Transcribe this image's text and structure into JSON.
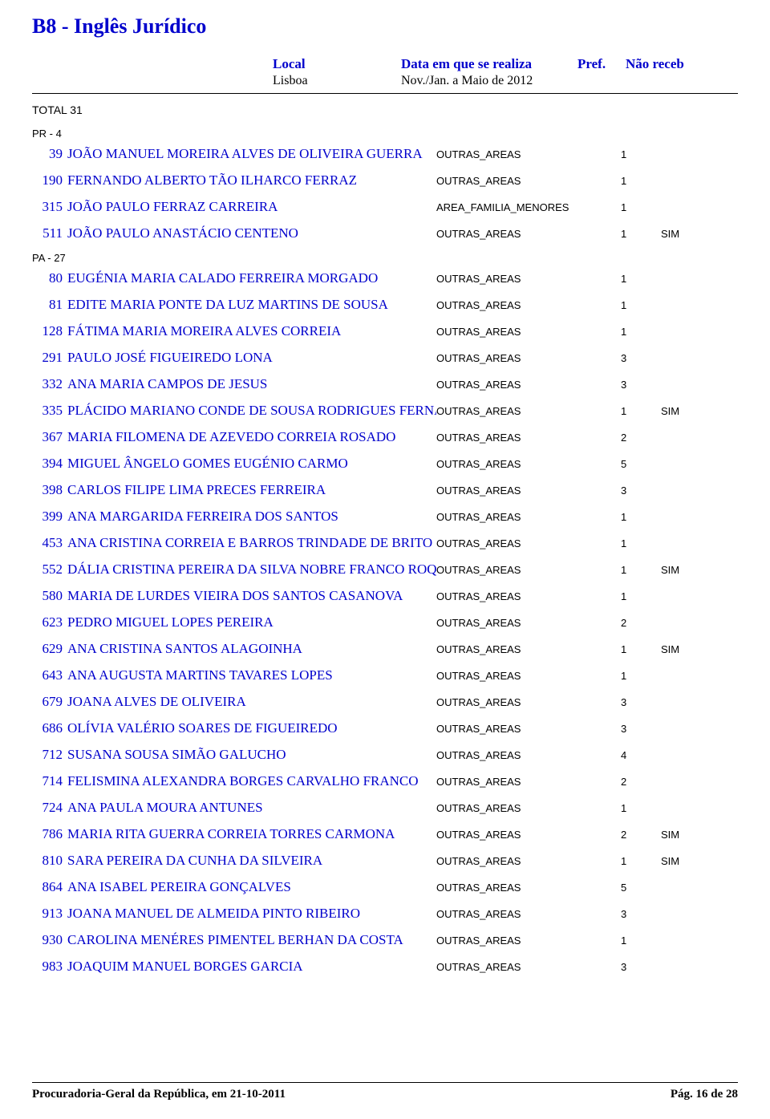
{
  "title": "B8 - Inglês Jurídico",
  "headers": {
    "local": "Local",
    "data": "Data em que se realiza",
    "pref": "Pref.",
    "nao": "Não receb"
  },
  "sub": {
    "local": "Lisboa",
    "data": "Nov./Jan. a Maio de 2012"
  },
  "total": "TOTAL 31",
  "groups": [
    {
      "label": "PR - 4",
      "rows": [
        {
          "num": "39",
          "name": "JOÃO MANUEL MOREIRA ALVES DE OLIVEIRA GUERRA",
          "area": "OUTRAS_AREAS",
          "pref": "1",
          "sim": ""
        },
        {
          "num": "190",
          "name": "FERNANDO ALBERTO TÃO ILHARCO FERRAZ",
          "area": "OUTRAS_AREAS",
          "pref": "1",
          "sim": ""
        },
        {
          "num": "315",
          "name": "JOÃO PAULO FERRAZ CARREIRA",
          "area": "AREA_FAMILIA_MENORES",
          "pref": "1",
          "sim": ""
        },
        {
          "num": "511",
          "name": "JOÃO PAULO ANASTÁCIO CENTENO",
          "area": "OUTRAS_AREAS",
          "pref": "1",
          "sim": "SIM"
        }
      ]
    },
    {
      "label": "PA - 27",
      "rows": [
        {
          "num": "80",
          "name": "EUGÉNIA MARIA CALADO FERREIRA MORGADO",
          "area": "OUTRAS_AREAS",
          "pref": "1",
          "sim": ""
        },
        {
          "num": "81",
          "name": "EDITE MARIA PONTE DA LUZ MARTINS DE SOUSA",
          "area": "OUTRAS_AREAS",
          "pref": "1",
          "sim": ""
        },
        {
          "num": "128",
          "name": "FÁTIMA MARIA MOREIRA ALVES CORREIA",
          "area": "OUTRAS_AREAS",
          "pref": "1",
          "sim": ""
        },
        {
          "num": "291",
          "name": "PAULO JOSÉ FIGUEIREDO LONA",
          "area": "OUTRAS_AREAS",
          "pref": "3",
          "sim": ""
        },
        {
          "num": "332",
          "name": "ANA MARIA CAMPOS DE JESUS",
          "area": "OUTRAS_AREAS",
          "pref": "3",
          "sim": ""
        },
        {
          "num": "335",
          "name": "PLÁCIDO MARIANO CONDE DE SOUSA RODRIGUES FERNANDES",
          "area": "OUTRAS_AREAS",
          "pref": "1",
          "sim": "SIM"
        },
        {
          "num": "367",
          "name": "MARIA FILOMENA DE AZEVEDO CORREIA ROSADO",
          "area": "OUTRAS_AREAS",
          "pref": "2",
          "sim": ""
        },
        {
          "num": "394",
          "name": "MIGUEL ÂNGELO GOMES EUGÉNIO CARMO",
          "area": "OUTRAS_AREAS",
          "pref": "5",
          "sim": ""
        },
        {
          "num": "398",
          "name": "CARLOS FILIPE LIMA PRECES FERREIRA",
          "area": "OUTRAS_AREAS",
          "pref": "3",
          "sim": ""
        },
        {
          "num": "399",
          "name": "ANA MARGARIDA FERREIRA DOS SANTOS",
          "area": "OUTRAS_AREAS",
          "pref": "1",
          "sim": ""
        },
        {
          "num": "453",
          "name": "ANA CRISTINA CORREIA E BARROS TRINDADE DE BRITO",
          "area": "OUTRAS_AREAS",
          "pref": "1",
          "sim": ""
        },
        {
          "num": "552",
          "name": "DÁLIA CRISTINA PEREIRA DA SILVA NOBRE FRANCO ROQUE",
          "area": "OUTRAS_AREAS",
          "pref": "1",
          "sim": "SIM"
        },
        {
          "num": "580",
          "name": "MARIA DE LURDES VIEIRA DOS SANTOS CASANOVA",
          "area": "OUTRAS_AREAS",
          "pref": "1",
          "sim": ""
        },
        {
          "num": "623",
          "name": "PEDRO MIGUEL LOPES PEREIRA",
          "area": "OUTRAS_AREAS",
          "pref": "2",
          "sim": ""
        },
        {
          "num": "629",
          "name": "ANA CRISTINA SANTOS ALAGOINHA",
          "area": "OUTRAS_AREAS",
          "pref": "1",
          "sim": "SIM"
        },
        {
          "num": "643",
          "name": "ANA AUGUSTA MARTINS TAVARES LOPES",
          "area": "OUTRAS_AREAS",
          "pref": "1",
          "sim": ""
        },
        {
          "num": "679",
          "name": "JOANA ALVES DE OLIVEIRA",
          "area": "OUTRAS_AREAS",
          "pref": "3",
          "sim": ""
        },
        {
          "num": "686",
          "name": "OLÍVIA VALÉRIO SOARES DE FIGUEIREDO",
          "area": "OUTRAS_AREAS",
          "pref": "3",
          "sim": ""
        },
        {
          "num": "712",
          "name": "SUSANA SOUSA SIMÃO GALUCHO",
          "area": "OUTRAS_AREAS",
          "pref": "4",
          "sim": ""
        },
        {
          "num": "714",
          "name": "FELISMINA ALEXANDRA BORGES CARVALHO FRANCO",
          "area": "OUTRAS_AREAS",
          "pref": "2",
          "sim": ""
        },
        {
          "num": "724",
          "name": "ANA PAULA MOURA ANTUNES",
          "area": "OUTRAS_AREAS",
          "pref": "1",
          "sim": ""
        },
        {
          "num": "786",
          "name": "MARIA RITA GUERRA CORREIA TORRES CARMONA",
          "area": "OUTRAS_AREAS",
          "pref": "2",
          "sim": "SIM"
        },
        {
          "num": "810",
          "name": "SARA PEREIRA DA CUNHA DA SILVEIRA",
          "area": "OUTRAS_AREAS",
          "pref": "1",
          "sim": "SIM"
        },
        {
          "num": "864",
          "name": "ANA ISABEL PEREIRA GONÇALVES",
          "area": "OUTRAS_AREAS",
          "pref": "5",
          "sim": ""
        },
        {
          "num": "913",
          "name": "JOANA MANUEL DE ALMEIDA PINTO RIBEIRO",
          "area": "OUTRAS_AREAS",
          "pref": "3",
          "sim": ""
        },
        {
          "num": "930",
          "name": "CAROLINA MENÉRES PIMENTEL BERHAN DA COSTA",
          "area": "OUTRAS_AREAS",
          "pref": "1",
          "sim": ""
        },
        {
          "num": "983",
          "name": "JOAQUIM MANUEL BORGES GARCIA",
          "area": "OUTRAS_AREAS",
          "pref": "3",
          "sim": ""
        }
      ]
    }
  ],
  "footer": {
    "left": "Procuradoria-Geral da República, em 21-10-2011",
    "right": "Pág. 16 de 28"
  }
}
